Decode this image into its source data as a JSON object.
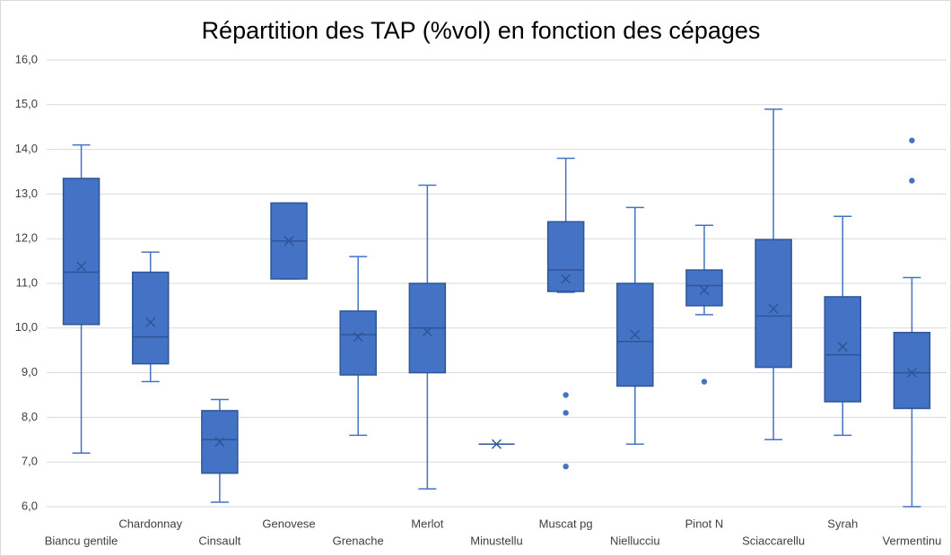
{
  "chart_data": {
    "type": "box",
    "title": "Répartition des TAP (%vol) en fonction des cépages",
    "categories": [
      "Biancu gentile",
      "Chardonnay",
      "Cinsault",
      "Genovese",
      "Grenache",
      "Merlot",
      "Minustellu",
      "Muscat pg",
      "Niellucciu",
      "Pinot N",
      "Sciaccarellu",
      "Syrah",
      "Vermentinu"
    ],
    "color": "#4472c4",
    "boxes": [
      {
        "min": 7.2,
        "q1": 10.08,
        "median": 11.25,
        "q3": 13.35,
        "max": 14.1,
        "mean": 11.38,
        "outliers": []
      },
      {
        "min": 8.8,
        "q1": 9.2,
        "median": 9.8,
        "q3": 11.25,
        "max": 11.7,
        "mean": 10.13,
        "outliers": []
      },
      {
        "min": 6.1,
        "q1": 6.75,
        "median": 7.5,
        "q3": 8.15,
        "max": 8.4,
        "mean": 7.45,
        "outliers": []
      },
      {
        "min": 11.1,
        "q1": 11.1,
        "median": 11.95,
        "q3": 12.8,
        "max": 12.8,
        "mean": 11.95,
        "outliers": []
      },
      {
        "min": 7.6,
        "q1": 8.95,
        "median": 9.85,
        "q3": 10.38,
        "max": 11.6,
        "mean": 9.8,
        "outliers": []
      },
      {
        "min": 6.4,
        "q1": 9.0,
        "median": 10.0,
        "q3": 11.0,
        "max": 13.2,
        "mean": 9.92,
        "outliers": []
      },
      {
        "min": 7.4,
        "q1": 7.4,
        "median": 7.4,
        "q3": 7.4,
        "max": 7.4,
        "mean": 7.4,
        "outliers": []
      },
      {
        "min": 10.8,
        "q1": 10.82,
        "median": 11.3,
        "q3": 12.38,
        "max": 13.8,
        "mean": 11.1,
        "outliers": [
          8.5,
          8.1,
          6.9
        ]
      },
      {
        "min": 7.4,
        "q1": 8.7,
        "median": 9.7,
        "q3": 11.0,
        "max": 12.7,
        "mean": 9.85,
        "outliers": []
      },
      {
        "min": 10.3,
        "q1": 10.5,
        "median": 10.95,
        "q3": 11.3,
        "max": 12.3,
        "mean": 10.85,
        "outliers": [
          8.8
        ]
      },
      {
        "min": 7.5,
        "q1": 9.12,
        "median": 10.27,
        "q3": 11.98,
        "max": 14.9,
        "mean": 10.43,
        "outliers": []
      },
      {
        "min": 7.6,
        "q1": 8.35,
        "median": 9.4,
        "q3": 10.7,
        "max": 12.5,
        "mean": 9.58,
        "outliers": []
      },
      {
        "min": 6.0,
        "q1": 8.2,
        "median": 9.0,
        "q3": 9.9,
        "max": 11.13,
        "mean": 9.0,
        "outliers": [
          13.3,
          14.2
        ]
      }
    ],
    "ylim": [
      6,
      16
    ],
    "yticks": [
      {
        "value": 6,
        "label": "6,0"
      },
      {
        "value": 7,
        "label": "7,0"
      },
      {
        "value": 8,
        "label": "8,0"
      },
      {
        "value": 9,
        "label": "9,0"
      },
      {
        "value": 10,
        "label": "10,0"
      },
      {
        "value": 11,
        "label": "11,0"
      },
      {
        "value": 12,
        "label": "12,0"
      },
      {
        "value": 13,
        "label": "13,0"
      },
      {
        "value": 14,
        "label": "14,0"
      },
      {
        "value": 15,
        "label": "15,0"
      },
      {
        "value": 16,
        "label": "16,0"
      }
    ],
    "grid": true
  }
}
